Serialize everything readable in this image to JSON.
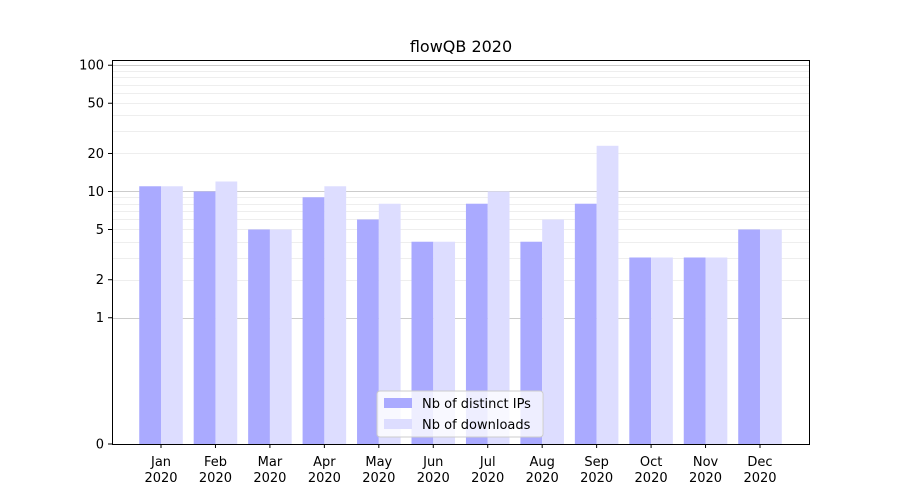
{
  "chart_data": {
    "type": "bar",
    "title": "flowQB 2020",
    "xlabel": "",
    "ylabel": "",
    "categories": [
      "Jan\n2020",
      "Feb\n2020",
      "Mar\n2020",
      "Apr\n2020",
      "May\n2020",
      "Jun\n2020",
      "Jul\n2020",
      "Aug\n2020",
      "Sep\n2020",
      "Oct\n2020",
      "Nov\n2020",
      "Dec\n2020"
    ],
    "series": [
      {
        "name": "Nb of distinct IPs",
        "color": "#aaaaff",
        "values": [
          11,
          10,
          5,
          9,
          6,
          4,
          8,
          4,
          8,
          3,
          3,
          5
        ]
      },
      {
        "name": "Nb of downloads",
        "color": "#ddddff",
        "values": [
          11,
          12,
          5,
          11,
          8,
          4,
          10,
          6,
          23,
          3,
          3,
          5
        ]
      }
    ],
    "yscale": "symlog",
    "ylim": [
      0,
      110
    ],
    "yticks": [
      0,
      1,
      2,
      5,
      10,
      20,
      50,
      100
    ],
    "grid": true,
    "legend": "bottom-center"
  }
}
